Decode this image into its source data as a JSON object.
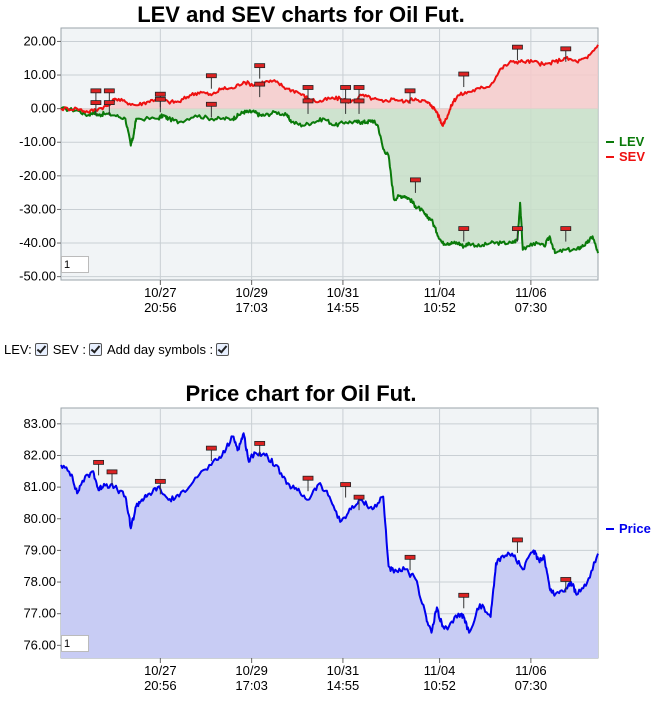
{
  "controls": {
    "lev_label": "LEV:",
    "sev_label": "SEV :",
    "day_symbols_label": "Add day symbols :",
    "lev_checked": true,
    "sev_checked": true,
    "day_symbols_checked": true
  },
  "colors": {
    "lev": "#0a7a0a",
    "sev": "#ee1111",
    "lev_fill": "#c8dfc8",
    "sev_fill": "#f6caca",
    "price": "#0000ee",
    "price_fill": "#c8ccf4",
    "plot_bg": "#f1f4f6",
    "grid": "#c9cfd4",
    "marker": "#dd2222"
  },
  "chart_data": [
    {
      "type": "line",
      "title": "LEV and SEV charts for Oil Fut.",
      "input_value": "1",
      "y_ticks": [
        "20.00",
        "10.00",
        "0.00",
        "-10.00",
        "-20.00",
        "-30.00",
        "-40.00",
        "-50.00"
      ],
      "ylim": [
        -51,
        24
      ],
      "xlim": [
        0,
        100
      ],
      "x_ticks": [
        {
          "x": 18.5,
          "date": "10/27",
          "time": "20:56"
        },
        {
          "x": 35.5,
          "date": "10/29",
          "time": "17:03"
        },
        {
          "x": 52.5,
          "date": "10/31",
          "time": "14:55"
        },
        {
          "x": 70.5,
          "date": "11/04",
          "time": "10:52"
        },
        {
          "x": 87.5,
          "date": "11/06",
          "time": "07:30"
        }
      ],
      "legend": [
        "LEV",
        "SEV"
      ],
      "legend_position": "right",
      "series": [
        {
          "name": "LEV",
          "x": [
            0,
            3,
            5,
            6,
            7,
            8,
            10,
            12,
            13,
            13.5,
            14,
            18,
            19,
            20,
            22,
            25,
            28,
            30,
            32,
            33,
            34,
            35,
            36,
            37,
            38,
            40,
            42,
            43,
            45,
            47,
            49,
            51,
            53,
            55,
            56,
            57,
            58,
            59,
            60,
            61,
            62,
            63,
            64,
            65,
            66,
            67,
            68,
            69,
            70,
            71,
            72,
            73,
            74,
            75,
            76,
            78,
            80,
            82,
            84,
            85,
            85.5,
            86,
            88,
            90,
            91,
            92,
            94,
            96,
            97,
            98,
            99,
            100
          ],
          "y": [
            0,
            -0.5,
            -2,
            -1,
            -2,
            -1.5,
            -2,
            -3,
            -11,
            -8,
            -3,
            -3,
            -2,
            -3,
            -4,
            -2,
            -3,
            -3,
            -3,
            -2,
            -1,
            -1,
            -1,
            -2,
            -2,
            -1,
            -2,
            -4,
            -5,
            -4,
            -3,
            -5,
            -4,
            -4,
            -4,
            -4,
            -3.5,
            -5,
            -12,
            -14,
            -27,
            -26,
            -26,
            -27,
            -29,
            -30,
            -32,
            -33,
            -37,
            -40,
            -40,
            -40,
            -40,
            -41,
            -40,
            -41,
            -40,
            -40,
            -40,
            -39,
            -28,
            -42,
            -40,
            -41,
            -38,
            -43,
            -42,
            -42,
            -41,
            -40,
            -38,
            -43
          ]
        },
        {
          "name": "SEV",
          "x": [
            0,
            3,
            5,
            7,
            9,
            10,
            12,
            14,
            16,
            18,
            20,
            22,
            24,
            26,
            28,
            30,
            32,
            34,
            36,
            38,
            40,
            42,
            44,
            46,
            48,
            50,
            52,
            54,
            56,
            58,
            60,
            62,
            64,
            66,
            68,
            69,
            70,
            71,
            72,
            73,
            74,
            76,
            78,
            80,
            82,
            84,
            86,
            88,
            90,
            92,
            94,
            96,
            98,
            100
          ],
          "y": [
            0,
            0,
            -1,
            0,
            1,
            3,
            2,
            1,
            2,
            3,
            2,
            2,
            4,
            5,
            4,
            6,
            6,
            8,
            7,
            8,
            8,
            6,
            5,
            3,
            2,
            3,
            3,
            2,
            4,
            3,
            2,
            3,
            2,
            3,
            2,
            1,
            -1,
            -5,
            -2,
            2,
            4,
            5,
            6,
            7,
            12,
            14,
            14,
            14,
            13,
            14,
            15,
            14,
            15,
            19
          ]
        }
      ],
      "day_markers": [
        {
          "x": 6.5,
          "y": 5
        },
        {
          "x": 6.5,
          "y": 1.5
        },
        {
          "x": 9,
          "y": 5
        },
        {
          "x": 9,
          "y": 1.5
        },
        {
          "x": 18.5,
          "y": 4
        },
        {
          "x": 18.5,
          "y": 2.5
        },
        {
          "x": 28,
          "y": 9.5
        },
        {
          "x": 28,
          "y": 1
        },
        {
          "x": 37,
          "y": 12.5
        },
        {
          "x": 37,
          "y": 7
        },
        {
          "x": 46,
          "y": 6
        },
        {
          "x": 46,
          "y": 2
        },
        {
          "x": 53,
          "y": 6
        },
        {
          "x": 53,
          "y": 2
        },
        {
          "x": 55.5,
          "y": 6
        },
        {
          "x": 55.5,
          "y": 2
        },
        {
          "x": 65,
          "y": 5
        },
        {
          "x": 66,
          "y": -21.5
        },
        {
          "x": 75,
          "y": 10
        },
        {
          "x": 75,
          "y": -36
        },
        {
          "x": 85,
          "y": 18
        },
        {
          "x": 85,
          "y": -36
        },
        {
          "x": 94,
          "y": 17.5
        },
        {
          "x": 94,
          "y": -36
        }
      ]
    },
    {
      "type": "area",
      "title": "Price chart for Oil Fut.",
      "input_value": "1",
      "y_ticks": [
        "83.00",
        "82.00",
        "81.00",
        "80.00",
        "79.00",
        "78.00",
        "77.00",
        "76.00"
      ],
      "ylim": [
        75.6,
        83.5
      ],
      "xlim": [
        0,
        100
      ],
      "x_ticks": [
        {
          "x": 18.5,
          "date": "10/27",
          "time": "20:56"
        },
        {
          "x": 35.5,
          "date": "10/29",
          "time": "17:03"
        },
        {
          "x": 52.5,
          "date": "10/31",
          "time": "14:55"
        },
        {
          "x": 70.5,
          "date": "11/04",
          "time": "10:52"
        },
        {
          "x": 87.5,
          "date": "11/06",
          "time": "07:30"
        }
      ],
      "legend": [
        "Price"
      ],
      "legend_position": "right",
      "series": [
        {
          "name": "Price",
          "x": [
            0,
            2,
            3,
            4,
            6,
            7,
            8,
            10,
            12,
            13,
            14,
            15,
            16,
            18,
            20,
            22,
            25,
            28,
            30,
            32,
            33,
            34,
            35,
            36,
            38,
            40,
            42,
            44,
            46,
            48,
            50,
            52,
            54,
            56,
            58,
            60,
            61,
            62,
            64,
            66,
            68,
            69,
            70,
            71,
            72,
            74,
            75,
            76,
            78,
            80,
            81,
            82,
            84,
            86,
            88,
            89,
            90,
            91,
            92,
            94,
            95,
            96,
            98,
            100
          ],
          "y": [
            81.7,
            81.4,
            80.8,
            81.2,
            81.5,
            80.9,
            81.1,
            81.0,
            80.7,
            79.7,
            80.4,
            80.6,
            80.7,
            81.0,
            80.6,
            80.7,
            81.3,
            81.7,
            82.0,
            82.6,
            82.2,
            82.7,
            81.8,
            82.1,
            82.0,
            81.7,
            81.1,
            80.9,
            80.6,
            81.1,
            80.7,
            79.9,
            80.3,
            80.6,
            80.3,
            80.7,
            78.5,
            78.3,
            78.4,
            78.1,
            76.9,
            76.4,
            77.2,
            76.6,
            76.5,
            77.0,
            76.9,
            76.4,
            77.3,
            76.9,
            78.6,
            78.8,
            78.9,
            78.4,
            79.0,
            78.7,
            78.8,
            77.8,
            77.6,
            77.8,
            78.0,
            77.6,
            78.0,
            78.9
          ]
        }
      ],
      "day_markers": [
        {
          "x": 7,
          "y": 81.75
        },
        {
          "x": 9.5,
          "y": 81.45
        },
        {
          "x": 18.5,
          "y": 81.15
        },
        {
          "x": 28,
          "y": 82.2
        },
        {
          "x": 37,
          "y": 82.35
        },
        {
          "x": 46,
          "y": 81.25
        },
        {
          "x": 53,
          "y": 81.05
        },
        {
          "x": 55.5,
          "y": 80.65
        },
        {
          "x": 65,
          "y": 78.75
        },
        {
          "x": 75,
          "y": 77.55
        },
        {
          "x": 85,
          "y": 79.3
        },
        {
          "x": 94,
          "y": 78.05
        }
      ]
    }
  ]
}
